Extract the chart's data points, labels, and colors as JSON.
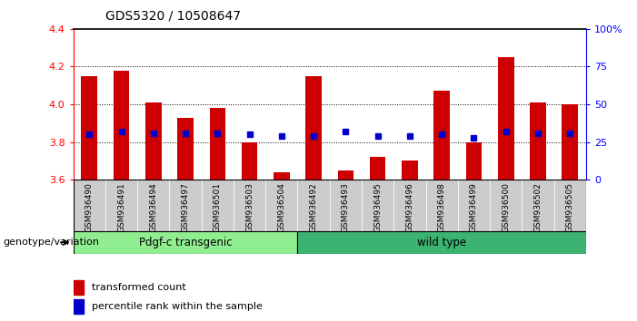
{
  "title": "GDS5320 / 10508647",
  "samples": [
    "GSM936490",
    "GSM936491",
    "GSM936494",
    "GSM936497",
    "GSM936501",
    "GSM936503",
    "GSM936504",
    "GSM936492",
    "GSM936493",
    "GSM936495",
    "GSM936496",
    "GSM936498",
    "GSM936499",
    "GSM936500",
    "GSM936502",
    "GSM936505"
  ],
  "transformed_count": [
    4.15,
    4.18,
    4.01,
    3.93,
    3.98,
    3.8,
    3.64,
    4.15,
    3.65,
    3.72,
    3.7,
    4.07,
    3.8,
    4.25,
    4.01,
    4.0
  ],
  "percentile_rank": [
    30,
    32,
    31,
    31,
    31,
    30,
    29,
    29,
    32,
    29,
    29,
    30,
    28,
    32,
    31,
    31
  ],
  "ylim_left": [
    3.6,
    4.4
  ],
  "ylim_right": [
    0,
    100
  ],
  "yticks_left": [
    3.6,
    3.8,
    4.0,
    4.2,
    4.4
  ],
  "yticks_right": [
    0,
    25,
    50,
    75,
    100
  ],
  "ytick_labels_right": [
    "0",
    "25",
    "50",
    "75",
    "100%"
  ],
  "group1_label": "Pdgf-c transgenic",
  "group1_count": 7,
  "group2_label": "wild type",
  "group2_count": 9,
  "genotype_label": "genotype/variation",
  "bar_color": "#cc0000",
  "marker_color": "#0000cc",
  "base_value": 3.6,
  "tick_area_color": "#cccccc",
  "group1_bg": "#90EE90",
  "group2_bg": "#3CB371",
  "legend_transformed": "transformed count",
  "legend_percentile": "percentile rank within the sample",
  "grid_lines": [
    3.8,
    4.0,
    4.2
  ]
}
